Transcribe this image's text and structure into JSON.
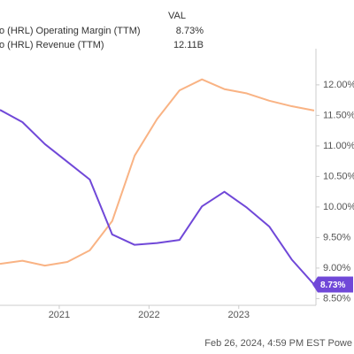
{
  "chart_data": {
    "type": "line",
    "legend_header": "VAL",
    "footer": "Feb 26, 2024, 4:59 PM EST Powe",
    "x": [
      2020.34,
      2020.59,
      2020.84,
      2021.09,
      2021.34,
      2021.59,
      2021.84,
      2022.09,
      2022.34,
      2022.59,
      2022.84,
      2023.09,
      2023.34,
      2023.59,
      2023.84
    ],
    "xlim": [
      2020.34,
      2023.86
    ],
    "xticks": [
      2021,
      2022,
      2023
    ],
    "ylim": [
      8.39,
      12.52
    ],
    "yticks": [
      {
        "value": 8.5,
        "label": "8.50%"
      },
      {
        "value": 9,
        "label": "9.00%"
      },
      {
        "value": 9.5,
        "label": "9.50%"
      },
      {
        "value": 10,
        "label": "10.00%"
      },
      {
        "value": 10.5,
        "label": "10.50%"
      },
      {
        "value": 11,
        "label": "11.00%"
      },
      {
        "value": 11.5,
        "label": "11.50%"
      },
      {
        "value": 12,
        "label": "12.00%"
      }
    ],
    "y2lim": [
      8.92,
      13.05
    ],
    "grid": false,
    "series": [
      {
        "name": "o (HRL) Operating Margin (TTM)",
        "color": "#7048d8",
        "current": "8.73%",
        "values": [
          11.59,
          11.39,
          11.03,
          10.74,
          10.45,
          9.55,
          9.38,
          9.41,
          9.46,
          10.01,
          10.25,
          9.99,
          9.68,
          9.14,
          8.73
        ]
      },
      {
        "name": "o (HRL) Revenue (TTM)",
        "color": "#f9b384",
        "current": "12.11B",
        "axis": "y2",
        "values": [
          9.6,
          9.65,
          9.57,
          9.63,
          9.82,
          10.3,
          11.37,
          11.97,
          12.44,
          12.62,
          12.46,
          12.39,
          12.27,
          12.18,
          12.11
        ]
      }
    ]
  }
}
